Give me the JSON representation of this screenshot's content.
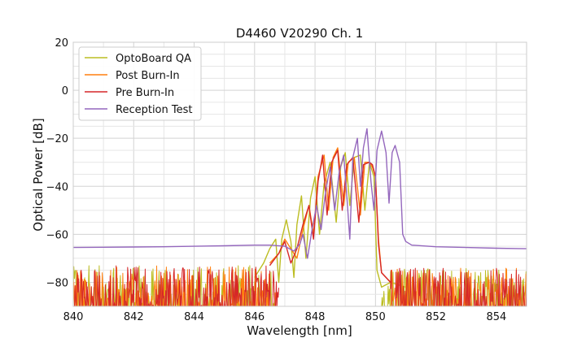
{
  "chart_data": {
    "type": "line",
    "title": "D4460 V20290 Ch. 1",
    "xlabel": "Wavelength [nm]",
    "ylabel": "Optical Power [dB]",
    "xlim": [
      840,
      855
    ],
    "ylim": [
      -90,
      20
    ],
    "xticks": [
      840,
      842,
      844,
      846,
      848,
      850,
      852,
      854
    ],
    "yticks": [
      -80,
      -60,
      -40,
      -20,
      0,
      20
    ],
    "grid": true,
    "legend_position": "top-left",
    "series": [
      {
        "name": "OptoBoard QA",
        "color": "#bcbd22",
        "noise_floor": {
          "x_range": [
            840.0,
            846.7
          ],
          "mean": -82,
          "spread": 9
        },
        "points": [
          [
            846.0,
            -78
          ],
          [
            846.3,
            -72
          ],
          [
            846.5,
            -66
          ],
          [
            846.7,
            -62
          ],
          [
            846.8,
            -80
          ],
          [
            846.9,
            -62
          ],
          [
            847.05,
            -54
          ],
          [
            847.2,
            -63
          ],
          [
            847.3,
            -78
          ],
          [
            847.4,
            -56
          ],
          [
            847.55,
            -44
          ],
          [
            847.7,
            -70
          ],
          [
            847.85,
            -45
          ],
          [
            848.0,
            -36
          ],
          [
            848.15,
            -60
          ],
          [
            848.3,
            -39
          ],
          [
            848.5,
            -30
          ],
          [
            848.7,
            -55
          ],
          [
            848.85,
            -32
          ],
          [
            849.0,
            -26
          ],
          [
            849.15,
            -48
          ],
          [
            849.3,
            -28
          ],
          [
            849.5,
            -27
          ],
          [
            849.65,
            -50
          ],
          [
            849.8,
            -30
          ],
          [
            849.95,
            -36
          ],
          [
            850.05,
            -75
          ],
          [
            850.2,
            -82
          ],
          [
            850.5,
            -80
          ],
          [
            851.0,
            -82
          ]
        ],
        "noise_tail": {
          "x_range": [
            850.2,
            855.0
          ],
          "mean": -82,
          "spread": 8
        }
      },
      {
        "name": "Post Burn-In",
        "color": "#ff7f0e",
        "noise_floor": {
          "x_range": [
            840.0,
            846.7
          ],
          "mean": -82,
          "spread": 9
        },
        "points": [
          [
            846.5,
            -72
          ],
          [
            846.8,
            -68
          ],
          [
            847.0,
            -62
          ],
          [
            847.2,
            -66
          ],
          [
            847.4,
            -70
          ],
          [
            847.6,
            -58
          ],
          [
            847.8,
            -48
          ],
          [
            847.95,
            -60
          ],
          [
            848.1,
            -36
          ],
          [
            848.3,
            -27
          ],
          [
            848.45,
            -50
          ],
          [
            848.6,
            -28
          ],
          [
            848.75,
            -24
          ],
          [
            848.95,
            -48
          ],
          [
            849.1,
            -30
          ],
          [
            849.3,
            -28
          ],
          [
            849.5,
            -52
          ],
          [
            849.65,
            -30
          ],
          [
            849.8,
            -30
          ],
          [
            849.9,
            -32
          ],
          [
            850.0,
            -36
          ],
          [
            850.1,
            -62
          ],
          [
            850.2,
            -76
          ],
          [
            850.5,
            -80
          ]
        ],
        "noise_tail": {
          "x_range": [
            850.5,
            855.0
          ],
          "mean": -82,
          "spread": 8
        }
      },
      {
        "name": "Pre Burn-In",
        "color": "#d62728",
        "noise_floor": {
          "x_range": [
            840.0,
            846.8
          ],
          "mean": -82,
          "spread": 9
        },
        "points": [
          [
            846.5,
            -73
          ],
          [
            846.8,
            -68
          ],
          [
            847.0,
            -63
          ],
          [
            847.2,
            -72
          ],
          [
            847.4,
            -66
          ],
          [
            847.6,
            -56
          ],
          [
            847.8,
            -48
          ],
          [
            847.95,
            -62
          ],
          [
            848.1,
            -38
          ],
          [
            848.25,
            -27
          ],
          [
            848.4,
            -52
          ],
          [
            848.55,
            -30
          ],
          [
            848.75,
            -25
          ],
          [
            848.9,
            -50
          ],
          [
            849.05,
            -31
          ],
          [
            849.25,
            -28
          ],
          [
            849.45,
            -55
          ],
          [
            849.6,
            -31
          ],
          [
            849.8,
            -30
          ],
          [
            849.9,
            -31
          ],
          [
            850.0,
            -36
          ],
          [
            850.1,
            -64
          ],
          [
            850.2,
            -76
          ],
          [
            850.5,
            -80
          ]
        ],
        "noise_tail": {
          "x_range": [
            850.5,
            855.0
          ],
          "mean": -82,
          "spread": 8
        }
      },
      {
        "name": "Reception Test",
        "color": "#9467bd",
        "points": [
          [
            840.0,
            -65.5
          ],
          [
            842.0,
            -65.3
          ],
          [
            843.0,
            -65.2
          ],
          [
            844.0,
            -65.0
          ],
          [
            845.0,
            -64.8
          ],
          [
            846.0,
            -64.5
          ],
          [
            846.5,
            -64.5
          ],
          [
            847.0,
            -65
          ],
          [
            847.3,
            -67
          ],
          [
            847.5,
            -64
          ],
          [
            847.6,
            -60
          ],
          [
            847.75,
            -70
          ],
          [
            847.9,
            -58
          ],
          [
            848.05,
            -48
          ],
          [
            848.2,
            -58
          ],
          [
            848.35,
            -42
          ],
          [
            848.5,
            -32
          ],
          [
            848.65,
            -50
          ],
          [
            848.8,
            -34
          ],
          [
            848.95,
            -27
          ],
          [
            849.05,
            -44
          ],
          [
            849.15,
            -62
          ],
          [
            849.25,
            -28
          ],
          [
            849.4,
            -20
          ],
          [
            849.5,
            -40
          ],
          [
            849.6,
            -24
          ],
          [
            849.72,
            -16
          ],
          [
            849.85,
            -38
          ],
          [
            849.95,
            -50
          ],
          [
            850.05,
            -25
          ],
          [
            850.2,
            -17
          ],
          [
            850.35,
            -26
          ],
          [
            850.45,
            -47
          ],
          [
            850.55,
            -26
          ],
          [
            850.65,
            -23
          ],
          [
            850.8,
            -30
          ],
          [
            850.9,
            -60
          ],
          [
            851.0,
            -63
          ],
          [
            851.2,
            -64.5
          ],
          [
            852.0,
            -65.2
          ],
          [
            853.0,
            -65.5
          ],
          [
            854.0,
            -65.8
          ],
          [
            855.0,
            -66.0
          ]
        ]
      }
    ]
  }
}
